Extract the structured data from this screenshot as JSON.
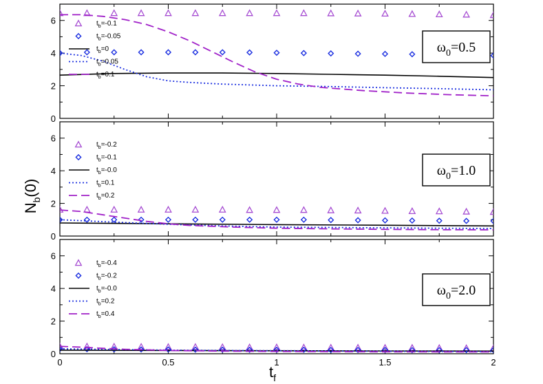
{
  "figure": {
    "ylabel_main": "N",
    "ylabel_sub": "b",
    "ylabel_tail": "(0)",
    "xlabel_main": "t",
    "xlabel_sub": "f"
  },
  "chart_data": [
    {
      "type": "line",
      "panel_label": {
        "prefix": "ω",
        "sub": "0",
        "value": "=0.5"
      },
      "xlim": [
        0,
        2
      ],
      "ylim": [
        0,
        7
      ],
      "xticks": [
        "0",
        "0.5",
        "1",
        "1.5",
        "2"
      ],
      "yticks": [
        "0",
        "2",
        "4",
        "6"
      ],
      "grid": false,
      "legend_position": "left",
      "series": [
        {
          "name": "t_b=-0.1",
          "label_main": "t",
          "label_sub": "b",
          "label_tail": "=-0.1",
          "style": "triangle",
          "color": "#a64dd2",
          "x": [
            0,
            0.125,
            0.25,
            0.375,
            0.5,
            0.625,
            0.75,
            0.875,
            1.0,
            1.125,
            1.25,
            1.375,
            1.5,
            1.625,
            1.75,
            1.875,
            2.0
          ],
          "y": [
            6.45,
            6.45,
            6.45,
            6.45,
            6.45,
            6.45,
            6.45,
            6.45,
            6.45,
            6.45,
            6.44,
            6.43,
            6.42,
            6.4,
            6.38,
            6.36,
            6.33
          ]
        },
        {
          "name": "t_b=-0.05",
          "label_main": "t",
          "label_sub": "b",
          "label_tail": "=-0.05",
          "style": "diamond",
          "color": "#1a2ee0",
          "x": [
            0,
            0.125,
            0.25,
            0.375,
            0.5,
            0.625,
            0.75,
            0.875,
            1.0,
            1.125,
            1.25,
            1.375,
            1.5,
            1.625,
            1.75,
            1.875,
            2.0
          ],
          "y": [
            4.0,
            4.05,
            4.05,
            4.05,
            4.05,
            4.05,
            4.05,
            4.04,
            4.02,
            4.0,
            3.98,
            3.96,
            3.95,
            3.93,
            3.91,
            3.88,
            3.85
          ]
        },
        {
          "name": "t_b=0",
          "label_main": "t",
          "label_sub": "b",
          "label_tail": "=0",
          "style": "solid",
          "color": "#000000",
          "x": [
            0,
            0.25,
            0.5,
            0.75,
            1.0,
            1.25,
            1.5,
            1.75,
            2.0
          ],
          "y": [
            2.65,
            2.75,
            2.78,
            2.78,
            2.75,
            2.7,
            2.65,
            2.58,
            2.5
          ]
        },
        {
          "name": "t_b=0.05",
          "label_main": "t",
          "label_sub": "b",
          "label_tail": "=0.05",
          "style": "dotted",
          "color": "#1a2ee0",
          "x": [
            0,
            0.1,
            0.2,
            0.3,
            0.4,
            0.5,
            0.6,
            0.75,
            1.0,
            1.25,
            1.5,
            1.75,
            2.0
          ],
          "y": [
            4.0,
            3.85,
            3.5,
            3.0,
            2.55,
            2.3,
            2.2,
            2.1,
            2.0,
            1.95,
            1.88,
            1.82,
            1.75
          ]
        },
        {
          "name": "t_b=0.1",
          "label_main": "t",
          "label_sub": "b",
          "label_tail": "=0.1",
          "style": "dashed",
          "color": "#a020c8",
          "x": [
            0,
            0.1,
            0.2,
            0.3,
            0.4,
            0.5,
            0.6,
            0.7,
            0.8,
            0.9,
            1.0,
            1.1,
            1.2,
            1.4,
            1.6,
            1.8,
            2.0
          ],
          "y": [
            6.35,
            6.35,
            6.25,
            6.05,
            5.75,
            5.3,
            4.75,
            4.1,
            3.45,
            2.85,
            2.4,
            2.1,
            1.9,
            1.7,
            1.55,
            1.45,
            1.38
          ]
        }
      ]
    },
    {
      "type": "line",
      "panel_label": {
        "prefix": "ω",
        "sub": "0",
        "value": "=1.0"
      },
      "xlim": [
        0,
        2
      ],
      "ylim": [
        0,
        7
      ],
      "xticks": [
        "0",
        "0.5",
        "1",
        "1.5",
        "2"
      ],
      "yticks": [
        "0",
        "2",
        "4",
        "6"
      ],
      "grid": false,
      "legend_position": "top-left",
      "series": [
        {
          "name": "t_b=-0.2",
          "label_main": "t",
          "label_sub": "b",
          "label_tail": "=-0.2",
          "style": "triangle",
          "color": "#a64dd2",
          "x": [
            0,
            0.125,
            0.25,
            0.375,
            0.5,
            0.625,
            0.75,
            0.875,
            1.0,
            1.125,
            1.25,
            1.375,
            1.5,
            1.625,
            1.75,
            1.875,
            2.0
          ],
          "y": [
            1.62,
            1.62,
            1.62,
            1.62,
            1.62,
            1.62,
            1.62,
            1.6,
            1.6,
            1.6,
            1.58,
            1.57,
            1.55,
            1.53,
            1.52,
            1.5,
            1.48
          ]
        },
        {
          "name": "t_b=-0.1",
          "label_main": "t",
          "label_sub": "b",
          "label_tail": "=-0.1",
          "style": "diamond",
          "color": "#1a2ee0",
          "x": [
            0,
            0.125,
            0.25,
            0.375,
            0.5,
            0.625,
            0.75,
            0.875,
            1.0,
            1.125,
            1.25,
            1.375,
            1.5,
            1.625,
            1.75,
            1.875,
            2.0
          ],
          "y": [
            1.0,
            1.0,
            1.0,
            1.0,
            1.0,
            1.0,
            1.0,
            1.0,
            1.0,
            1.0,
            0.98,
            0.97,
            0.96,
            0.95,
            0.94,
            0.93,
            0.92
          ]
        },
        {
          "name": "t_b=-0.0",
          "label_main": "t",
          "label_sub": "b",
          "label_tail": "=-0.0",
          "style": "solid",
          "color": "#000000",
          "x": [
            0,
            0.5,
            1.0,
            1.5,
            2.0
          ],
          "y": [
            0.8,
            0.75,
            0.7,
            0.66,
            0.62
          ]
        },
        {
          "name": "t_b=0.1",
          "label_main": "t",
          "label_sub": "b",
          "label_tail": "=0.1",
          "style": "dotted",
          "color": "#1a2ee0",
          "x": [
            0,
            0.25,
            0.5,
            0.75,
            1.0,
            1.5,
            2.0
          ],
          "y": [
            1.0,
            0.85,
            0.72,
            0.62,
            0.55,
            0.5,
            0.46
          ]
        },
        {
          "name": "t_b=0.2",
          "label_main": "t",
          "label_sub": "b",
          "label_tail": "=0.2",
          "style": "dashed",
          "color": "#a020c8",
          "x": [
            0,
            0.1,
            0.2,
            0.3,
            0.4,
            0.5,
            0.6,
            0.8,
            1.0,
            1.25,
            1.5,
            1.75,
            2.0
          ],
          "y": [
            1.6,
            1.5,
            1.3,
            1.1,
            0.9,
            0.75,
            0.65,
            0.55,
            0.48,
            0.44,
            0.41,
            0.39,
            0.38
          ]
        }
      ]
    },
    {
      "type": "line",
      "panel_label": {
        "prefix": "ω",
        "sub": "0",
        "value": "=2.0"
      },
      "xlim": [
        0,
        2
      ],
      "ylim": [
        0,
        7
      ],
      "xticks": [
        "0",
        "0.5",
        "1",
        "1.5",
        "2"
      ],
      "yticks": [
        "0",
        "2",
        "4",
        "6"
      ],
      "grid": false,
      "legend_position": "top-left",
      "series": [
        {
          "name": "t_b=-0.4",
          "label_main": "t",
          "label_sub": "b",
          "label_tail": "=-0.4",
          "style": "triangle",
          "color": "#a64dd2",
          "x": [
            0,
            0.125,
            0.25,
            0.375,
            0.5,
            0.625,
            0.75,
            0.875,
            1.0,
            1.125,
            1.25,
            1.375,
            1.5,
            1.625,
            1.75,
            1.875,
            2.0
          ],
          "y": [
            0.45,
            0.45,
            0.44,
            0.43,
            0.42,
            0.42,
            0.41,
            0.4,
            0.4,
            0.39,
            0.38,
            0.38,
            0.37,
            0.37,
            0.36,
            0.35,
            0.35
          ]
        },
        {
          "name": "t_b=-0.2",
          "label_main": "t",
          "label_sub": "b",
          "label_tail": "=-0.2",
          "style": "diamond",
          "color": "#1a2ee0",
          "x": [
            0,
            0.125,
            0.25,
            0.375,
            0.5,
            0.625,
            0.75,
            0.875,
            1.0,
            1.125,
            1.25,
            1.375,
            1.5,
            1.625,
            1.75,
            1.875,
            2.0
          ],
          "y": [
            0.3,
            0.28,
            0.27,
            0.26,
            0.26,
            0.25,
            0.25,
            0.24,
            0.24,
            0.24,
            0.23,
            0.23,
            0.23,
            0.22,
            0.22,
            0.22,
            0.22
          ]
        },
        {
          "name": "t_b=-0.0",
          "label_main": "t",
          "label_sub": "b",
          "label_tail": "=-0.0",
          "style": "solid",
          "color": "#000000",
          "x": [
            0,
            0.5,
            1.0,
            1.5,
            2.0
          ],
          "y": [
            0.22,
            0.2,
            0.18,
            0.17,
            0.16
          ]
        },
        {
          "name": "t_b=0.2",
          "label_main": "t",
          "label_sub": "b",
          "label_tail": "=0.2",
          "style": "dotted",
          "color": "#1a2ee0",
          "x": [
            0,
            0.5,
            1.0,
            1.5,
            2.0
          ],
          "y": [
            0.3,
            0.22,
            0.18,
            0.15,
            0.13
          ]
        },
        {
          "name": "t_b=0.4",
          "label_main": "t",
          "label_sub": "b",
          "label_tail": "=0.4",
          "style": "dashed",
          "color": "#a020c8",
          "x": [
            0,
            0.1,
            0.2,
            0.3,
            0.5,
            0.75,
            1.0,
            1.5,
            2.0
          ],
          "y": [
            0.45,
            0.4,
            0.33,
            0.27,
            0.2,
            0.16,
            0.14,
            0.12,
            0.11
          ]
        }
      ]
    }
  ]
}
